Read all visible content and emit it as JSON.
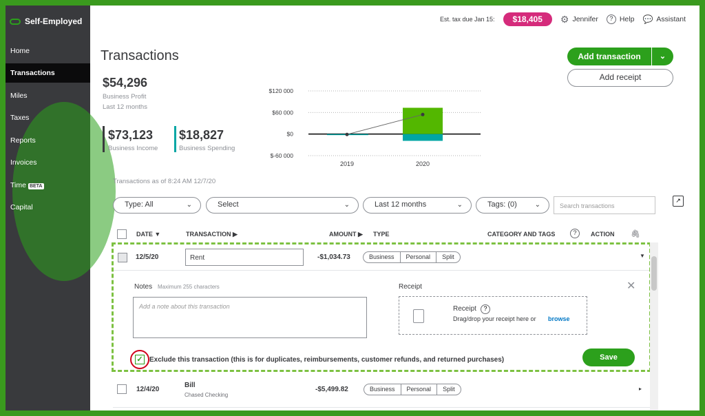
{
  "sidebar": {
    "brand": "Self-Employed",
    "items": [
      {
        "label": "Home"
      },
      {
        "label": "Transactions"
      },
      {
        "label": "Miles"
      },
      {
        "label": "Taxes"
      },
      {
        "label": "Reports"
      },
      {
        "label": "Invoices"
      },
      {
        "label": "Time",
        "badge": "BETA"
      },
      {
        "label": "Capital"
      }
    ]
  },
  "topbar": {
    "est_tax_label": "Est. tax due Jan 15:",
    "est_tax_value": "$18,405",
    "user": "Jennifer",
    "help": "Help",
    "assistant": "Assistant"
  },
  "page": {
    "title": "Transactions",
    "add_transaction": "Add transaction",
    "add_receipt": "Add receipt"
  },
  "stats": {
    "profit_value": "$54,296",
    "profit_label": "Business Profit",
    "profit_period": "Last 12 months",
    "income_value": "$73,123",
    "income_label": "Business Income",
    "spending_value": "$18,827",
    "spending_label": "Business Spending"
  },
  "chart_data": {
    "type": "bar",
    "categories": [
      "2019",
      "2020"
    ],
    "series": [
      {
        "name": "Business Income",
        "values": [
          0,
          73123
        ],
        "color": "#53b700"
      },
      {
        "name": "Business Spending",
        "values": [
          -2000,
          -18827
        ],
        "color": "#00a6a4"
      }
    ],
    "profit_line": [
      -1000,
      54296
    ],
    "y_ticks": [
      "$120 000",
      "$60 000",
      "$0",
      "$-60 000"
    ],
    "ylim": [
      -60000,
      120000
    ]
  },
  "as_of": "Transactions as of 8:24 AM 12/7/20",
  "filters": {
    "type": "Type: All",
    "select": "Select",
    "period": "Last 12 months",
    "tags": "Tags: (0)",
    "search_placeholder": "Search transactions"
  },
  "table": {
    "headers": {
      "date": "DATE ▼",
      "transaction": "TRANSACTION ▶",
      "amount": "AMOUNT ▶",
      "type": "TYPE",
      "category": "CATEGORY AND TAGS",
      "action": "ACTION"
    },
    "type_options": [
      "Business",
      "Personal",
      "Split"
    ],
    "rows": [
      {
        "date": "12/5/20",
        "transaction": "Rent",
        "amount": "-$1,034.73"
      },
      {
        "date": "12/4/20",
        "transaction": "Bill",
        "account": "Chased Checking",
        "amount": "-$5,499.82"
      }
    ]
  },
  "expanded": {
    "notes_label": "Notes",
    "notes_hint": "Maximum 255 characters",
    "notes_placeholder": "Add a note about this transaction",
    "receipt_label": "Receipt",
    "receipt_title": "Receipt",
    "receipt_text": "Drag/drop your receipt here or",
    "receipt_link": "browse",
    "exclude_text": "Exclude this transaction (this is for duplicates, reimbursements, customer refunds, and returned purchases)",
    "save": "Save"
  }
}
